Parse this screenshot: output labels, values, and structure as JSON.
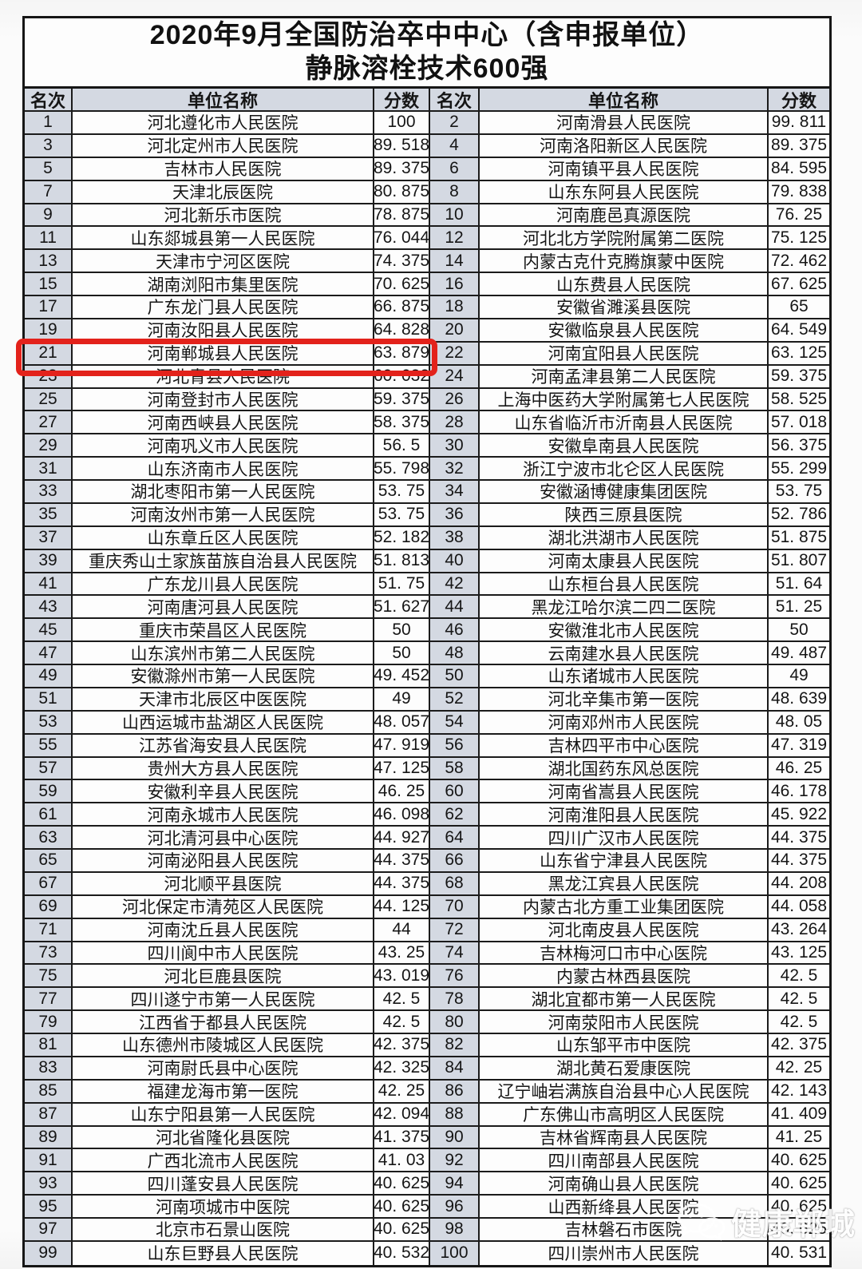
{
  "title": {
    "line1": "2020年9月全国防治卒中中心（含申报单位）",
    "line2": "静脉溶栓技术600强"
  },
  "table": {
    "headers": [
      "名次",
      "单位名称",
      "分数",
      "名次",
      "单位名称",
      "分数"
    ],
    "rank_bg_color": "#d4d9e2",
    "border_color": "#1b1b1b",
    "rows": [
      {
        "rank_l": "1",
        "name_l": "河北遵化市人民医院",
        "score_l": "100",
        "rank_r": "2",
        "name_r": "河南滑县人民医院",
        "score_r": "99. 811"
      },
      {
        "rank_l": "3",
        "name_l": "河北定州市人民医院",
        "score_l": "89. 518",
        "rank_r": "4",
        "name_r": "河南洛阳新区人民医院",
        "score_r": "89. 375"
      },
      {
        "rank_l": "5",
        "name_l": "吉林市人民医院",
        "score_l": "89. 375",
        "rank_r": "6",
        "name_r": "河南镇平县人民医院",
        "score_r": "84. 595"
      },
      {
        "rank_l": "7",
        "name_l": "天津北辰医院",
        "score_l": "80. 875",
        "rank_r": "8",
        "name_r": "山东东阿县人民医院",
        "score_r": "79. 838"
      },
      {
        "rank_l": "9",
        "name_l": "河北新乐市医院",
        "score_l": "78. 875",
        "rank_r": "10",
        "name_r": "河南鹿邑真源医院",
        "score_r": "76. 25"
      },
      {
        "rank_l": "11",
        "name_l": "山东郯城县第一人民医院",
        "score_l": "76. 044",
        "rank_r": "12",
        "name_r": "河北北方学院附属第二医院",
        "score_r": "75. 125"
      },
      {
        "rank_l": "13",
        "name_l": "天津市宁河区医院",
        "score_l": "74. 375",
        "rank_r": "14",
        "name_r": "内蒙古克什克腾旗蒙中医院",
        "score_r": "72. 462"
      },
      {
        "rank_l": "15",
        "name_l": "湖南浏阳市集里医院",
        "score_l": "70. 625",
        "rank_r": "16",
        "name_r": "山东费县人民医院",
        "score_r": "67. 625"
      },
      {
        "rank_l": "17",
        "name_l": "广东龙门县人民医院",
        "score_l": "66. 875",
        "rank_r": "18",
        "name_r": "安徽省濉溪县医院",
        "score_r": "65"
      },
      {
        "rank_l": "19",
        "name_l": "河南汝阳县人民医院",
        "score_l": "64. 828",
        "rank_r": "20",
        "name_r": "安徽临泉县人民医院",
        "score_r": "64. 549"
      },
      {
        "rank_l": "21",
        "name_l": "河南郸城县人民医院",
        "score_l": "63. 879",
        "rank_r": "22",
        "name_r": "河南宜阳县人民医院",
        "score_r": "63. 125"
      },
      {
        "rank_l": "23",
        "name_l": "河北青县人民医院",
        "score_l": "60. 032",
        "rank_r": "24",
        "name_r": "河南孟津县第二人民医院",
        "score_r": "59. 375"
      },
      {
        "rank_l": "25",
        "name_l": "河南登封市人民医院",
        "score_l": "59. 375",
        "rank_r": "26",
        "name_r": "上海中医药大学附属第七人民医院",
        "score_r": "58. 525"
      },
      {
        "rank_l": "27",
        "name_l": "河南西峡县人民医院",
        "score_l": "58. 375",
        "rank_r": "28",
        "name_r": "山东省临沂市沂南县人民医院",
        "score_r": "57. 018"
      },
      {
        "rank_l": "29",
        "name_l": "河南巩义市人民医院",
        "score_l": "56. 5",
        "rank_r": "30",
        "name_r": "安徽阜南县人民医院",
        "score_r": "56. 375"
      },
      {
        "rank_l": "31",
        "name_l": "山东济南市人民医院",
        "score_l": "55. 798",
        "rank_r": "32",
        "name_r": "浙江宁波市北仑区人民医院",
        "score_r": "55. 299"
      },
      {
        "rank_l": "33",
        "name_l": "湖北枣阳市第一人民医院",
        "score_l": "53. 75",
        "rank_r": "34",
        "name_r": "安徽涵博健康集团医院",
        "score_r": "53. 75"
      },
      {
        "rank_l": "35",
        "name_l": "河南汝州市第一人民医院",
        "score_l": "53. 75",
        "rank_r": "36",
        "name_r": "陕西三原县医院",
        "score_r": "52. 786"
      },
      {
        "rank_l": "37",
        "name_l": "山东章丘区人民医院",
        "score_l": "52. 182",
        "rank_r": "38",
        "name_r": "湖北洪湖市人民医院",
        "score_r": "51. 875"
      },
      {
        "rank_l": "39",
        "name_l": "重庆秀山土家族苗族自治县人民医院",
        "score_l": "51. 813",
        "rank_r": "40",
        "name_r": "河南太康县人民医院",
        "score_r": "51. 807"
      },
      {
        "rank_l": "41",
        "name_l": "广东龙川县人民医院",
        "score_l": "51. 75",
        "rank_r": "42",
        "name_r": "山东桓台县人民医院",
        "score_r": "51. 64"
      },
      {
        "rank_l": "43",
        "name_l": "河南唐河县人民医院",
        "score_l": "51. 627",
        "rank_r": "44",
        "name_r": "黑龙江哈尔滨二四二医院",
        "score_r": "51. 25"
      },
      {
        "rank_l": "45",
        "name_l": "重庆市荣昌区人民医院",
        "score_l": "50",
        "rank_r": "46",
        "name_r": "安徽淮北市人民医院",
        "score_r": "50"
      },
      {
        "rank_l": "47",
        "name_l": "山东滨州市第二人民医院",
        "score_l": "50",
        "rank_r": "48",
        "name_r": "云南建水县人民医院",
        "score_r": "49. 487"
      },
      {
        "rank_l": "49",
        "name_l": "安徽滁州市第一人民医院",
        "score_l": "49. 452",
        "rank_r": "50",
        "name_r": "山东诸城市人民医院",
        "score_r": "49"
      },
      {
        "rank_l": "51",
        "name_l": "天津市北辰区中医医院",
        "score_l": "49",
        "rank_r": "52",
        "name_r": "河北辛集市第一医院",
        "score_r": "48. 639"
      },
      {
        "rank_l": "53",
        "name_l": "山西运城市盐湖区人民医院",
        "score_l": "48. 057",
        "rank_r": "54",
        "name_r": "河南邓州市人民医院",
        "score_r": "48. 05"
      },
      {
        "rank_l": "55",
        "name_l": "江苏省海安县人民医院",
        "score_l": "47. 919",
        "rank_r": "56",
        "name_r": "吉林四平市中心医院",
        "score_r": "47. 319"
      },
      {
        "rank_l": "57",
        "name_l": "贵州大方县人民医院",
        "score_l": "47. 125",
        "rank_r": "58",
        "name_r": "湖北国药东风总医院",
        "score_r": "46. 25"
      },
      {
        "rank_l": "59",
        "name_l": "安徽利辛县人民医院",
        "score_l": "46. 25",
        "rank_r": "60",
        "name_r": "河南省嵩县人民医院",
        "score_r": "46. 178"
      },
      {
        "rank_l": "61",
        "name_l": "河南永城市人民医院",
        "score_l": "46. 098",
        "rank_r": "62",
        "name_r": "河南淮阳县人民医院",
        "score_r": "45. 922"
      },
      {
        "rank_l": "63",
        "name_l": "河北清河县中心医院",
        "score_l": "44. 927",
        "rank_r": "64",
        "name_r": "四川广汉市人民医院",
        "score_r": "44. 375"
      },
      {
        "rank_l": "65",
        "name_l": "河南泌阳县人民医院",
        "score_l": "44. 375",
        "rank_r": "66",
        "name_r": "山东省宁津县人民医院",
        "score_r": "44. 375"
      },
      {
        "rank_l": "67",
        "name_l": "河北顺平县医院",
        "score_l": "44. 375",
        "rank_r": "68",
        "name_r": "黑龙江宾县人民医院",
        "score_r": "44. 208"
      },
      {
        "rank_l": "69",
        "name_l": "河北保定市清苑区人民医院",
        "score_l": "44. 125",
        "rank_r": "70",
        "name_r": "内蒙古北方重工业集团医院",
        "score_r": "44. 058"
      },
      {
        "rank_l": "71",
        "name_l": "河南沈丘县人民医院",
        "score_l": "44",
        "rank_r": "72",
        "name_r": "河北南皮县人民医院",
        "score_r": "43. 264"
      },
      {
        "rank_l": "73",
        "name_l": "四川阆中市人民医院",
        "score_l": "43. 25",
        "rank_r": "74",
        "name_r": "吉林梅河口市中心医院",
        "score_r": "43. 125"
      },
      {
        "rank_l": "75",
        "name_l": "河北巨鹿县医院",
        "score_l": "43. 019",
        "rank_r": "76",
        "name_r": "内蒙古林西县医院",
        "score_r": "42. 5"
      },
      {
        "rank_l": "77",
        "name_l": "四川遂宁市第一人民医院",
        "score_l": "42. 5",
        "rank_r": "78",
        "name_r": "湖北宜都市第一人民医院",
        "score_r": "42. 5"
      },
      {
        "rank_l": "79",
        "name_l": "江西省于都县人民医院",
        "score_l": "42. 5",
        "rank_r": "80",
        "name_r": "河南荥阳市人民医院",
        "score_r": "42. 5"
      },
      {
        "rank_l": "81",
        "name_l": "山东德州市陵城区人民医院",
        "score_l": "42. 375",
        "rank_r": "82",
        "name_r": "山东邹平市中医院",
        "score_r": "42. 375"
      },
      {
        "rank_l": "83",
        "name_l": "河南尉氏县中心医院",
        "score_l": "42. 325",
        "rank_r": "84",
        "name_r": "湖北黄石爱康医院",
        "score_r": "42. 25"
      },
      {
        "rank_l": "85",
        "name_l": "福建龙海市第一医院",
        "score_l": "42. 25",
        "rank_r": "86",
        "name_r": "辽宁岫岩满族自治县中心人民医院",
        "score_r": "42. 143"
      },
      {
        "rank_l": "87",
        "name_l": "山东宁阳县第一人民医院",
        "score_l": "42. 094",
        "rank_r": "88",
        "name_r": "广东佛山市高明区人民医院",
        "score_r": "41. 409"
      },
      {
        "rank_l": "89",
        "name_l": "河北省隆化县医院",
        "score_l": "41. 375",
        "rank_r": "90",
        "name_r": "吉林省辉南县人民医院",
        "score_r": "41. 25"
      },
      {
        "rank_l": "91",
        "name_l": "广西北流市人民医院",
        "score_l": "41. 03",
        "rank_r": "92",
        "name_r": "四川南部县人民医院",
        "score_r": "40. 625"
      },
      {
        "rank_l": "93",
        "name_l": "四川蓬安县人民医院",
        "score_l": "40. 625",
        "rank_r": "94",
        "name_r": "河南确山县人民医院",
        "score_r": "40. 625"
      },
      {
        "rank_l": "95",
        "name_l": "河南项城市中医院",
        "score_l": "40. 625",
        "rank_r": "96",
        "name_r": "山西新绛县人民医院",
        "score_r": "40. 625"
      },
      {
        "rank_l": "97",
        "name_l": "北京市石景山医院",
        "score_l": "40. 625",
        "rank_r": "98",
        "name_r": "吉林磐石市医院",
        "score_r": "40. 625"
      },
      {
        "rank_l": "99",
        "name_l": "山东巨野县人民医院",
        "score_l": "40. 532",
        "rank_r": "100",
        "name_r": "四川崇州市人民医院",
        "score_r": "40. 531"
      }
    ]
  },
  "highlight": {
    "highlighted_rank": "21",
    "highlighted_name": "河南郸城县人民医院",
    "highlighted_score": "63. 879",
    "color": "#e3221b"
  },
  "watermark": {
    "text": "健康郸城",
    "icon": "wechat-chat-bubbles-icon"
  }
}
